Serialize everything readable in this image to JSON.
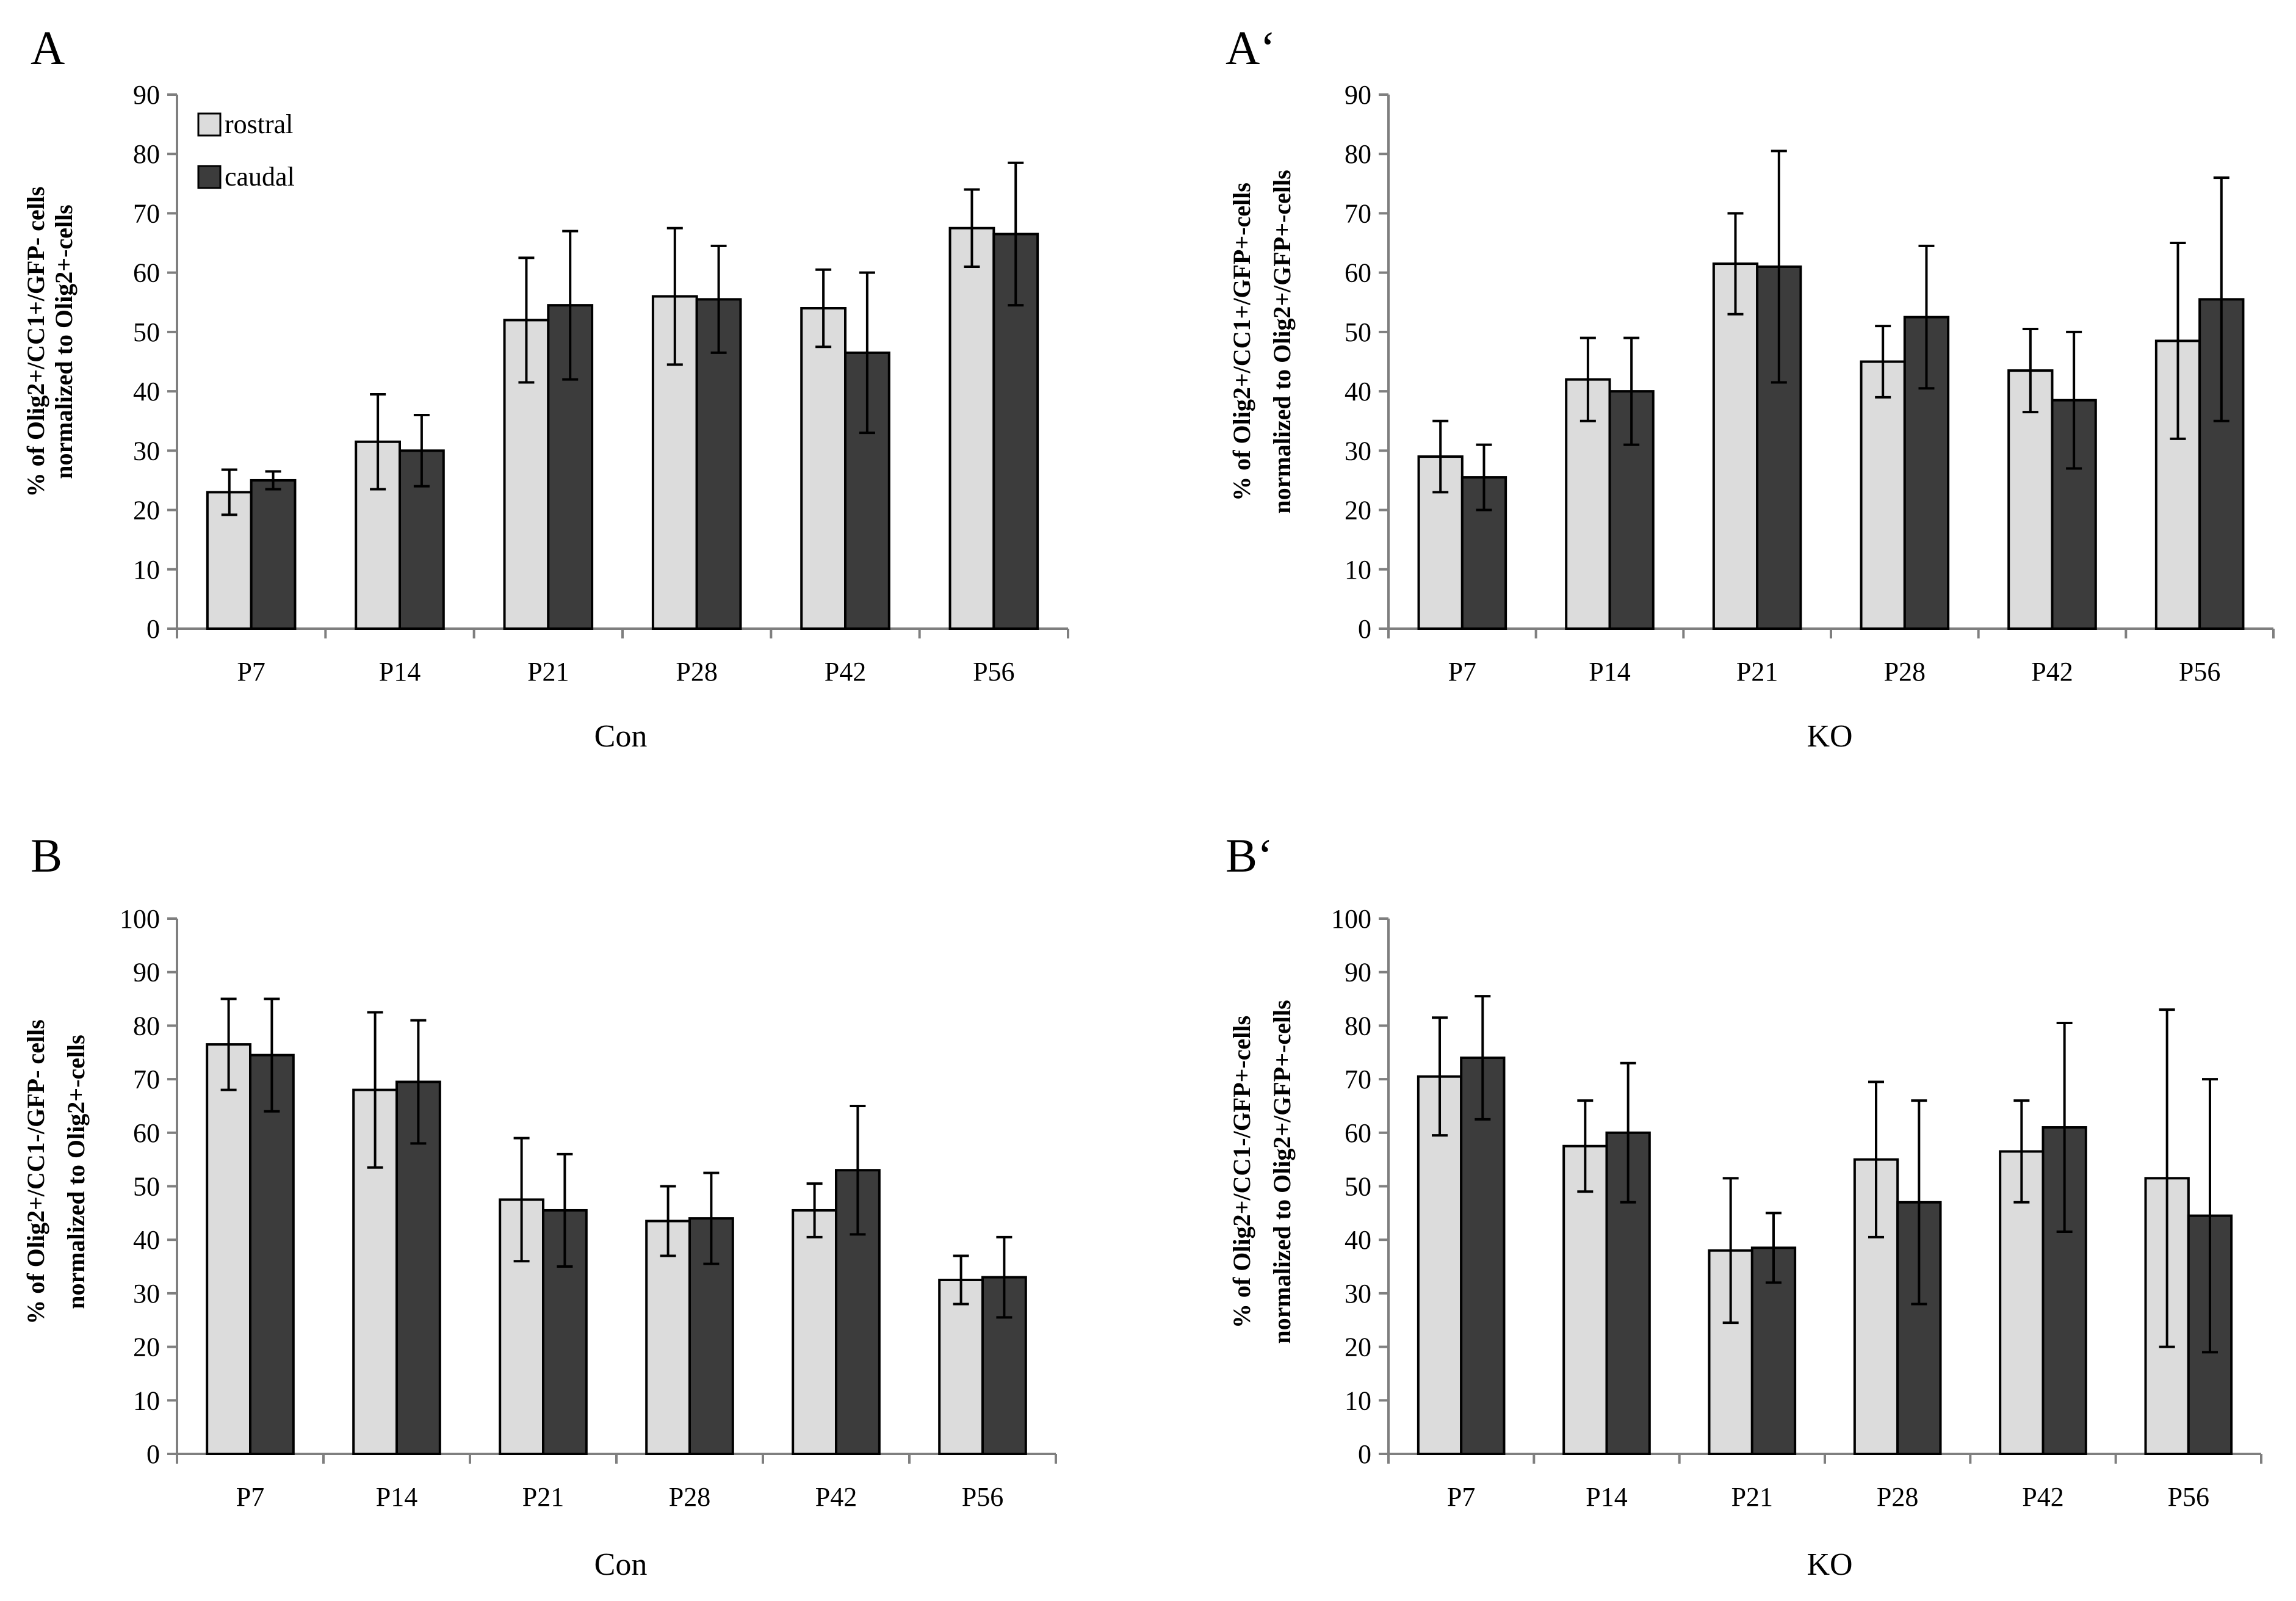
{
  "colors": {
    "rostral": "#dcdcdc",
    "caudal": "#3c3c3c",
    "axis": "#7f7f7f",
    "stroke": "#000000"
  },
  "legend": {
    "rostral": "rostral",
    "caudal": "caudal"
  },
  "chart_data": [
    {
      "type": "bar",
      "panel": "A",
      "categories": [
        "P7",
        "P14",
        "P21",
        "P28",
        "P42",
        "P56"
      ],
      "ylim": [
        0,
        90
      ],
      "yticks": [
        "0",
        "10",
        "20",
        "30",
        "40",
        "50",
        "60",
        "70",
        "80",
        "90"
      ],
      "xlabel": "Con",
      "ylabel_line1": "% of Olig2+/CC1+/GFP- cells",
      "ylabel_line2": "normalized to Olig2+-cells",
      "legend": true,
      "series": [
        {
          "name": "rostral",
          "values": [
            23,
            31.5,
            52,
            56,
            54,
            67.5
          ],
          "errors": [
            3.8,
            8,
            10.5,
            11.5,
            6.5,
            6.5
          ]
        },
        {
          "name": "caudal",
          "values": [
            25,
            30,
            54.5,
            55.5,
            46.5,
            66.5
          ],
          "errors": [
            1.5,
            6,
            12.5,
            9,
            13.5,
            12
          ]
        }
      ]
    },
    {
      "type": "bar",
      "panel": "A‘",
      "categories": [
        "P7",
        "P14",
        "P21",
        "P28",
        "P42",
        "P56"
      ],
      "ylim": [
        0,
        90
      ],
      "yticks": [
        "0",
        "10",
        "20",
        "30",
        "40",
        "50",
        "60",
        "70",
        "80",
        "90"
      ],
      "xlabel": "KO",
      "ylabel_line1": "% of Olig2+/CC1+/GFP+-cells",
      "ylabel_line2": "normalized to Olig2+/GFP+-cells",
      "legend": false,
      "series": [
        {
          "name": "rostral",
          "values": [
            29,
            42,
            61.5,
            45,
            43.5,
            48.5
          ],
          "errors": [
            6,
            7,
            8.5,
            6,
            7,
            16.5
          ]
        },
        {
          "name": "caudal",
          "values": [
            25.5,
            40,
            61,
            52.5,
            38.5,
            55.5
          ],
          "errors": [
            5.5,
            9,
            19.5,
            12,
            11.5,
            20.5
          ]
        }
      ]
    },
    {
      "type": "bar",
      "panel": "B",
      "categories": [
        "P7",
        "P14",
        "P21",
        "P28",
        "P42",
        "P56"
      ],
      "ylim": [
        0,
        100
      ],
      "yticks": [
        "0",
        "10",
        "20",
        "30",
        "40",
        "50",
        "60",
        "70",
        "80",
        "90",
        "100"
      ],
      "xlabel": "Con",
      "ylabel_line1": "% of Olig2+/CC1-/GFP- cells",
      "ylabel_line2": "normalized to Olig2+-cells",
      "legend": false,
      "series": [
        {
          "name": "rostral",
          "values": [
            76.5,
            68,
            47.5,
            43.5,
            45.5,
            32.5
          ],
          "errors": [
            8.5,
            14.5,
            11.5,
            6.5,
            5,
            4.5
          ]
        },
        {
          "name": "caudal",
          "values": [
            74.5,
            69.5,
            45.5,
            44,
            53,
            33
          ],
          "errors": [
            10.5,
            11.5,
            10.5,
            8.5,
            12,
            7.5
          ]
        }
      ]
    },
    {
      "type": "bar",
      "panel": "B‘",
      "categories": [
        "P7",
        "P14",
        "P21",
        "P28",
        "P42",
        "P56"
      ],
      "ylim": [
        0,
        100
      ],
      "yticks": [
        "0",
        "10",
        "20",
        "30",
        "40",
        "50",
        "60",
        "70",
        "80",
        "90",
        "100"
      ],
      "xlabel": "KO",
      "ylabel_line1": "% of Olig2+/CC1-/GFP+-cells",
      "ylabel_line2": "normalized to Olig2+/GFP+-cells",
      "legend": false,
      "series": [
        {
          "name": "rostral",
          "values": [
            70.5,
            57.5,
            38,
            55,
            56.5,
            51.5
          ],
          "errors": [
            11,
            8.5,
            13.5,
            14.5,
            9.5,
            31.5
          ]
        },
        {
          "name": "caudal",
          "values": [
            74,
            60,
            38.5,
            47,
            61,
            44.5
          ],
          "errors": [
            11.5,
            13,
            6.5,
            19,
            19.5,
            25.5
          ]
        }
      ]
    }
  ]
}
